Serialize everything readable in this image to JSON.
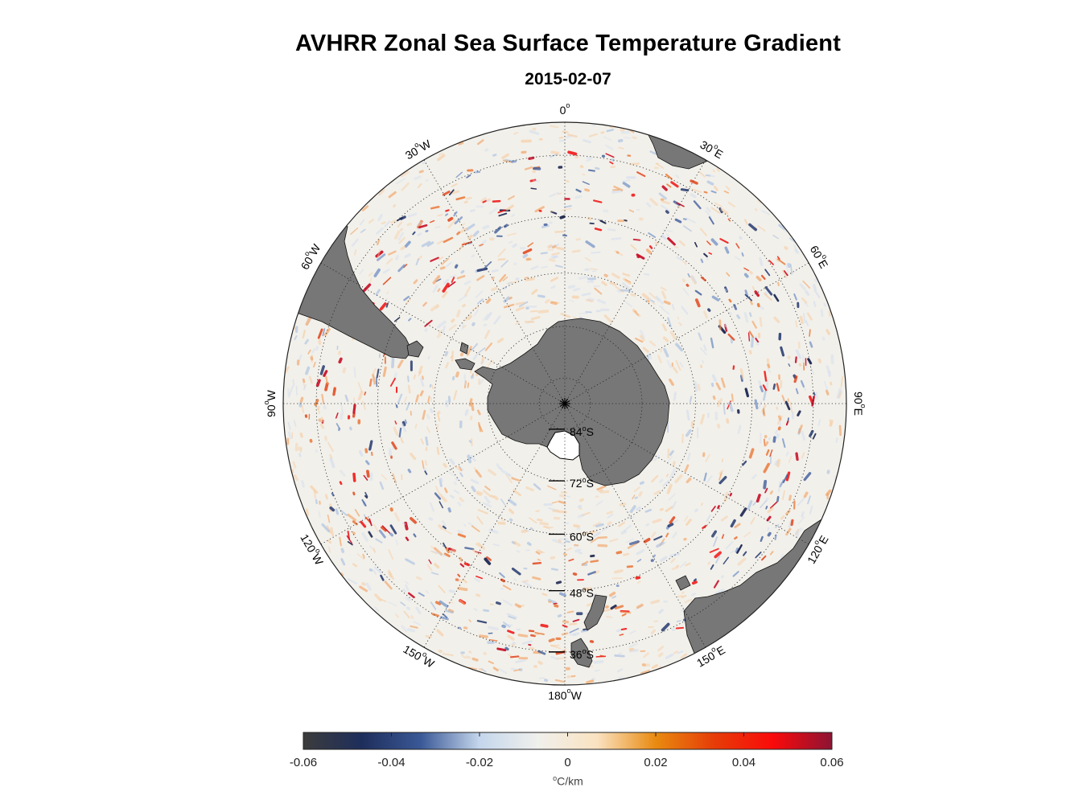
{
  "title": "AVHRR Zonal Sea Surface Temperature Gradient",
  "date": "2015-02-07",
  "map": {
    "projection": "south polar stereographic",
    "center_latitude": -90,
    "outer_latitude": -30,
    "longitude_labels": [
      {
        "lon": 0,
        "text": "0",
        "deg": "o",
        "suffix": ""
      },
      {
        "lon": 30,
        "text": "30",
        "deg": "o",
        "suffix": "E"
      },
      {
        "lon": 60,
        "text": "60",
        "deg": "o",
        "suffix": "E"
      },
      {
        "lon": 90,
        "text": "90",
        "deg": "o",
        "suffix": "E"
      },
      {
        "lon": 120,
        "text": "120",
        "deg": "o",
        "suffix": "E"
      },
      {
        "lon": 150,
        "text": "150",
        "deg": "o",
        "suffix": "E"
      },
      {
        "lon": 180,
        "text": "180",
        "deg": "o",
        "suffix": "W"
      },
      {
        "lon": -150,
        "text": "150",
        "deg": "o",
        "suffix": "W"
      },
      {
        "lon": -120,
        "text": "120",
        "deg": "o",
        "suffix": "W"
      },
      {
        "lon": -90,
        "text": "90",
        "deg": "o",
        "suffix": "W"
      },
      {
        "lon": -60,
        "text": "60",
        "deg": "o",
        "suffix": "W"
      },
      {
        "lon": -30,
        "text": "30",
        "deg": "o",
        "suffix": "W"
      }
    ],
    "latitude_labels": [
      {
        "lat": -84,
        "text": "84",
        "deg": "o",
        "suffix": "S"
      },
      {
        "lat": -72,
        "text": "72",
        "deg": "o",
        "suffix": "S"
      },
      {
        "lat": -60,
        "text": "60",
        "deg": "o",
        "suffix": "S"
      },
      {
        "lat": -48,
        "text": "48",
        "deg": "o",
        "suffix": "S"
      },
      {
        "lat": -36,
        "text": "36",
        "deg": "o",
        "suffix": "S"
      }
    ],
    "land_color": "#777777",
    "ocean_base_color": "#f2f0ea",
    "grid_color": "#222222"
  },
  "colorbar": {
    "min": -0.06,
    "max": 0.06,
    "ticks": [
      "-0.06",
      "-0.04",
      "-0.02",
      "0",
      "0.02",
      "0.04",
      "0.06"
    ],
    "unit_deg": "o",
    "unit_text": "C/km",
    "colors": [
      "#3c3c3c",
      "#1e2e5c",
      "#3a5896",
      "#c4d6ec",
      "#f0f0ec",
      "#fae2c0",
      "#e88a10",
      "#e63c08",
      "#fa0a0a",
      "#8c1434"
    ]
  }
}
